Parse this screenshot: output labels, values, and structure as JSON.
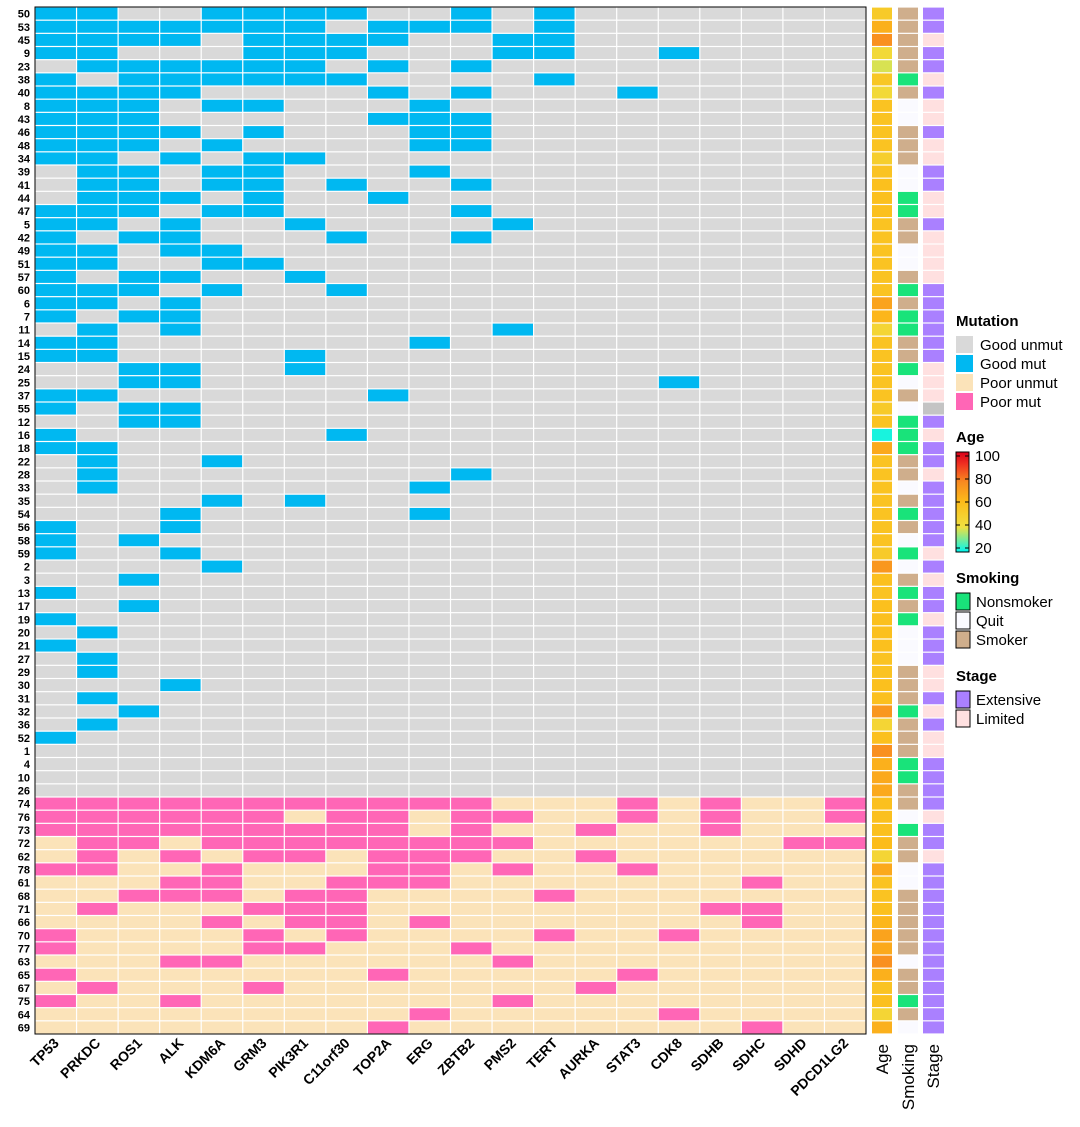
{
  "chart_data": {
    "type": "heatmap",
    "title": "",
    "columns": [
      "TP53",
      "PRKDC",
      "ROS1",
      "ALK",
      "KDM6A",
      "GRM3",
      "PIK3R1",
      "C11orf30",
      "TOP2A",
      "ERG",
      "ZBTB2",
      "PMS2",
      "TERT",
      "AURKA",
      "STAT3",
      "CDK8",
      "SDHB",
      "SDHC",
      "SDHD",
      "PDCD1LG2"
    ],
    "rows": [
      "50",
      "53",
      "45",
      "9",
      "23",
      "38",
      "40",
      "8",
      "43",
      "46",
      "48",
      "34",
      "39",
      "41",
      "44",
      "47",
      "5",
      "42",
      "49",
      "51",
      "57",
      "60",
      "6",
      "7",
      "11",
      "14",
      "15",
      "24",
      "25",
      "37",
      "55",
      "12",
      "16",
      "18",
      "22",
      "28",
      "33",
      "35",
      "54",
      "56",
      "58",
      "59",
      "2",
      "3",
      "13",
      "17",
      "19",
      "20",
      "21",
      "27",
      "29",
      "30",
      "31",
      "32",
      "36",
      "52",
      "1",
      "4",
      "10",
      "26",
      "74",
      "76",
      "73",
      "72",
      "62",
      "78",
      "61",
      "68",
      "71",
      "66",
      "70",
      "77",
      "63",
      "65",
      "67",
      "75",
      "64",
      "69"
    ],
    "matrix": [
      "11001111001010000000",
      "11111110111010000000",
      "11110111100110000000",
      "11000111000110010000",
      "01111110101000000000",
      "10111111000010000000",
      "11110000101000100000",
      "11101100010000000000",
      "11100000111000000000",
      "11110100011000000000",
      "11101000011000000000",
      "11010110000000000000",
      "01101100010000000000",
      "01101101001000000000",
      "01110100100000000000",
      "11101100001000000000",
      "11010010000100000000",
      "10110001001000000000",
      "11011000000000000000",
      "11001100000000000000",
      "10110010000000000000",
      "11101001000000000000",
      "11010000000000000000",
      "10110000000000000000",
      "01010000000100000000",
      "11000000010000000000",
      "11000010000000000000",
      "00110010000000000000",
      "00110000000000010000",
      "11000000100000000000",
      "10110000000000000000",
      "00110000000000000000",
      "10000001000000000000",
      "11000000000000000000",
      "01001000000000000000",
      "01000000001000000000",
      "01000000010000000000",
      "00001010000000000000",
      "00010000010000000000",
      "10010000000000000000",
      "10100000000000000000",
      "10010000000000000000",
      "00001000000000000000",
      "00100000000000000000",
      "10000000000000000000",
      "00100000000000000000",
      "10000000000000000000",
      "01000000000000000000",
      "10000000000000000000",
      "01000000000000000000",
      "01000000000000000000",
      "00010000000000000000",
      "01000000000000000000",
      "00100000000000000000",
      "01000000000000000000",
      "10000000000000000000",
      "00000000000000000000",
      "00000000000000000000",
      "00000000000000000000",
      "00000000000000000000",
      "11111111111000101001",
      "11111101101100101001",
      "11111111101001001000",
      "01101111111100000011",
      "01010110111001000000",
      "11001000110100100000",
      "00011001110000000100",
      "00111011000010000000",
      "01000111000000001100",
      "00001011010000000100",
      "10000101000010010000",
      "10000110001000000000",
      "00011000000100000000",
      "10000000100000100000",
      "01000100000001000000",
      "10010000000100000000",
      "00000000010000010000",
      "00000000100000000100"
    ],
    "matrix_encoding": "0 = unmut, 1 = mut",
    "row_group_from_index": 60,
    "row_groups": [
      "Good",
      "Poor"
    ],
    "age": [
      52,
      64,
      74,
      44,
      38,
      54,
      44,
      56,
      56,
      56,
      56,
      50,
      56,
      58,
      58,
      58,
      56,
      56,
      56,
      56,
      56,
      56,
      68,
      62,
      46,
      56,
      56,
      56,
      56,
      56,
      52,
      56,
      22,
      66,
      56,
      56,
      56,
      56,
      56,
      56,
      56,
      52,
      72,
      58,
      56,
      58,
      58,
      58,
      58,
      56,
      56,
      58,
      58,
      72,
      46,
      58,
      74,
      64,
      66,
      66,
      58,
      58,
      58,
      60,
      46,
      66,
      56,
      56,
      58,
      62,
      68,
      66,
      74,
      64,
      56,
      58,
      46,
      64
    ],
    "smoking": [
      "Smoker",
      "Smoker",
      "Smoker",
      "Smoker",
      "Smoker",
      "Nonsmoker",
      "Smoker",
      "Quit",
      "Quit",
      "Smoker",
      "Smoker",
      "Smoker",
      "Quit",
      "Quit",
      "Nonsmoker",
      "Nonsmoker",
      "Smoker",
      "Smoker",
      "Quit",
      "Quit",
      "Smoker",
      "Nonsmoker",
      "Smoker",
      "Nonsmoker",
      "Nonsmoker",
      "Smoker",
      "Smoker",
      "Nonsmoker",
      "Quit",
      "Smoker",
      "Quit",
      "Nonsmoker",
      "Nonsmoker",
      "Nonsmoker",
      "Smoker",
      "Smoker",
      "Quit",
      "Smoker",
      "Nonsmoker",
      "Smoker",
      "Quit",
      "Nonsmoker",
      "Quit",
      "Smoker",
      "Nonsmoker",
      "Smoker",
      "Nonsmoker",
      "Quit",
      "Quit",
      "Quit",
      "Smoker",
      "Smoker",
      "Smoker",
      "Nonsmoker",
      "Smoker",
      "Smoker",
      "Smoker",
      "Nonsmoker",
      "Nonsmoker",
      "Smoker",
      "Smoker",
      "Quit",
      "Nonsmoker",
      "Smoker",
      "Smoker",
      "Quit",
      "Quit",
      "Smoker",
      "Smoker",
      "Smoker",
      "Smoker",
      "Smoker",
      "Quit",
      "Smoker",
      "Smoker",
      "Nonsmoker",
      "Smoker",
      "Quit"
    ],
    "stage": [
      "Extensive",
      "Extensive",
      "Limited",
      "Extensive",
      "Extensive",
      "Limited",
      "Extensive",
      "Limited",
      "Limited",
      "Extensive",
      "Limited",
      "Limited",
      "Extensive",
      "Extensive",
      "Limited",
      "Limited",
      "Extensive",
      "Limited",
      "Limited",
      "Limited",
      "Limited",
      "Extensive",
      "Extensive",
      "Extensive",
      "Extensive",
      "Extensive",
      "Extensive",
      "Limited",
      "Limited",
      "Limited",
      "NA",
      "Extensive",
      "Limited",
      "Extensive",
      "Extensive",
      "Limited",
      "Extensive",
      "Extensive",
      "Extensive",
      "Extensive",
      "Extensive",
      "Limited",
      "Extensive",
      "Limited",
      "Extensive",
      "Extensive",
      "Limited",
      "Extensive",
      "Extensive",
      "Extensive",
      "Limited",
      "Limited",
      "Extensive",
      "Limited",
      "Extensive",
      "Limited",
      "Limited",
      "Extensive",
      "Extensive",
      "Extensive",
      "Extensive",
      "Limited",
      "Extensive",
      "Extensive",
      "Limited",
      "Extensive",
      "Extensive",
      "Extensive",
      "Extensive",
      "Extensive",
      "Extensive",
      "Extensive",
      "Extensive",
      "Extensive",
      "Extensive",
      "Extensive",
      "Extensive",
      "Extensive"
    ],
    "annotation_labels": [
      "Age",
      "Smoking",
      "Stage"
    ],
    "legend_placement": "right",
    "grid": true
  },
  "legend": {
    "mutation_title": "Mutation",
    "mutation_items": [
      {
        "label": "Good unmut",
        "color": "#d9d9d9"
      },
      {
        "label": "Good mut",
        "color": "#00b8f1"
      },
      {
        "label": "Poor unmut",
        "color": "#fbe3b9"
      },
      {
        "label": "Poor mut",
        "color": "#ff66b6"
      }
    ],
    "age_title": "Age",
    "age_ticks": [
      "100",
      "80",
      "60",
      "40",
      "20"
    ],
    "age_range": [
      20,
      100
    ],
    "smoking_title": "Smoking",
    "smoking_items": [
      {
        "label": "Nonsmoker",
        "color": "#19e37a"
      },
      {
        "label": "Quit",
        "color": "#fafaff"
      },
      {
        "label": "Smoker",
        "color": "#cfae8c"
      }
    ],
    "stage_title": "Stage",
    "stage_items": [
      {
        "label": "Extensive",
        "color": "#aa80ff"
      },
      {
        "label": "Limited",
        "color": "#ffe0e0"
      }
    ]
  },
  "colors": {
    "na": "#c4c4c4",
    "age_gradient": [
      "#00f5f0",
      "#f0e040",
      "#fcbc1a",
      "#f88a20",
      "#f03020",
      "#d8001a"
    ]
  }
}
